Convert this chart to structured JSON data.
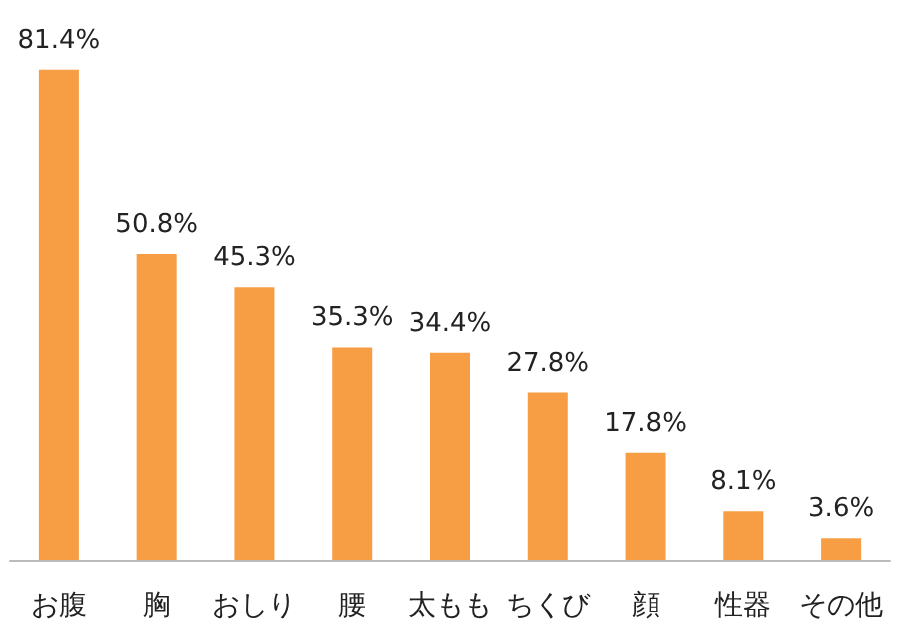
{
  "chart_data": {
    "type": "bar",
    "categories": [
      "お腹",
      "胸",
      "おしり",
      "腰",
      "太もも",
      "ちくび",
      "顔",
      "性器",
      "その他"
    ],
    "values": [
      81.4,
      50.8,
      45.3,
      35.3,
      34.4,
      27.8,
      17.8,
      8.1,
      3.6
    ],
    "value_labels": [
      "81.4%",
      "50.8%",
      "45.3%",
      "35.3%",
      "34.4%",
      "27.8%",
      "17.8%",
      "8.1%",
      "3.6%"
    ],
    "color": "#f79d43"
  }
}
